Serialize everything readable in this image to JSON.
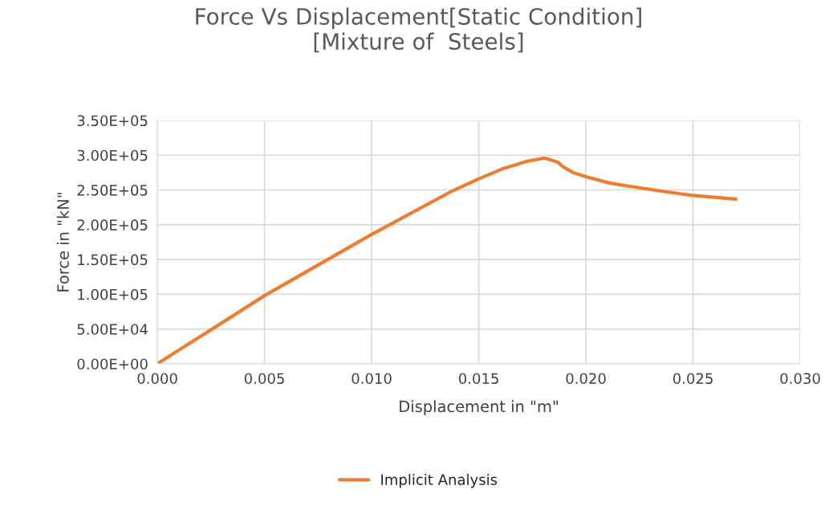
{
  "chart_data": {
    "type": "line",
    "title": "Force Vs Displacement[Static Condition]\n[Mixture of  Steels]",
    "xlabel": "Displacement in \"m\"",
    "ylabel": "Force in \"kN\"",
    "series": [
      {
        "name": "Implicit Analysis",
        "color": "#ed7d31",
        "x": [
          0,
          0.005,
          0.01,
          0.01364,
          0.015,
          0.01616,
          0.0173,
          0.01806,
          0.0187,
          0.0189,
          0.0194,
          0.02,
          0.0211,
          0.0223,
          0.0236,
          0.025,
          0.027
        ],
        "values": [
          0,
          98000,
          186000,
          246600,
          266000,
          281000,
          291500,
          296000,
          290000,
          284000,
          275000,
          269000,
          260000,
          254000,
          248000,
          242000,
          236800
        ]
      }
    ],
    "xlim": [
      0,
      0.03
    ],
    "xticks": [
      {
        "value": 0,
        "label": "0.000"
      },
      {
        "value": 0.005,
        "label": "0.005"
      },
      {
        "value": 0.01,
        "label": "0.010"
      },
      {
        "value": 0.015,
        "label": "0.015"
      },
      {
        "value": 0.02,
        "label": "0.020"
      },
      {
        "value": 0.025,
        "label": "0.025"
      },
      {
        "value": 0.03,
        "label": "0.030"
      }
    ],
    "ylim": [
      0,
      350000
    ],
    "yticks": [
      {
        "value": 0,
        "label": "0.00E+00"
      },
      {
        "value": 50000,
        "label": "5.00E+04"
      },
      {
        "value": 100000,
        "label": "1.00E+05"
      },
      {
        "value": 150000,
        "label": "1.50E+05"
      },
      {
        "value": 200000,
        "label": "2.00E+05"
      },
      {
        "value": 250000,
        "label": "2.50E+05"
      },
      {
        "value": 300000,
        "label": "3.00E+05"
      },
      {
        "value": 350000,
        "label": "3.50E+05"
      }
    ],
    "grid": true,
    "legend": "bottom",
    "marker": "none",
    "line_style": "solid"
  }
}
